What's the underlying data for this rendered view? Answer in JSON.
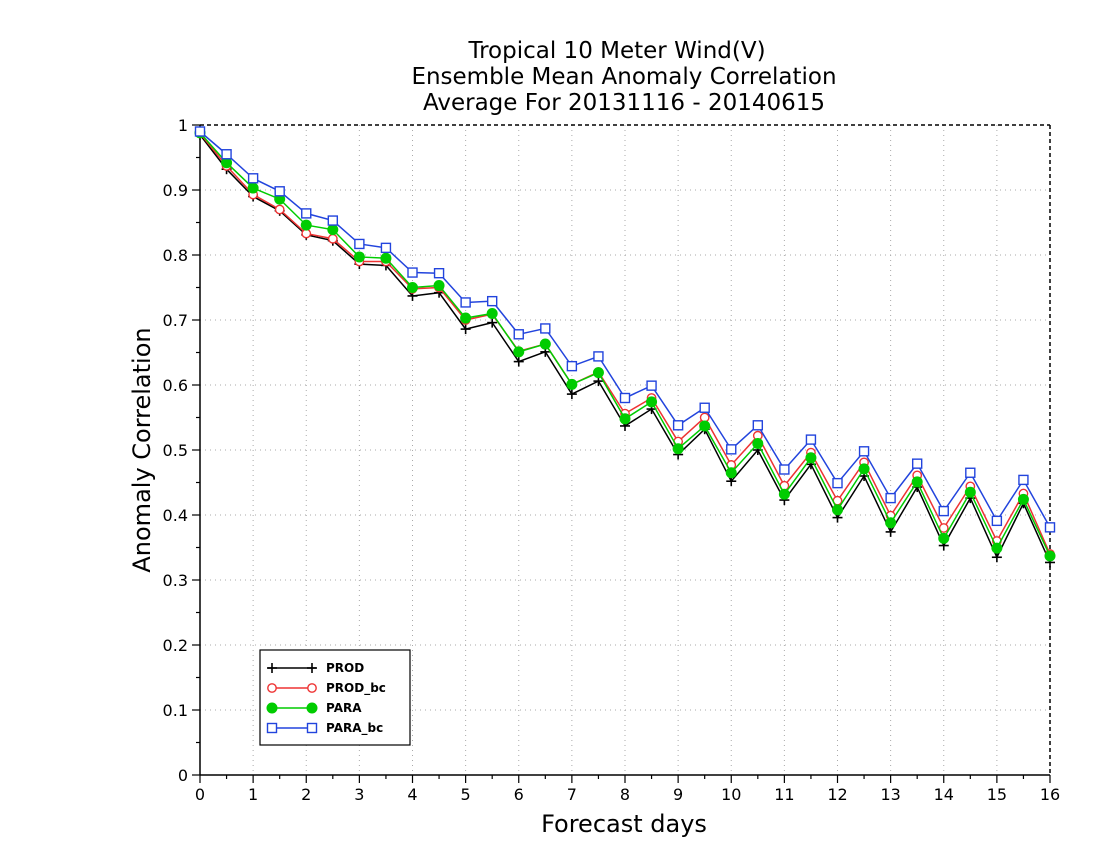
{
  "chart_data": {
    "type": "line",
    "title_lines": [
      "Tropical 10 Meter Wind(V)",
      "Ensemble Mean Anomaly Correlation",
      "Average For 20131116 - 20140615"
    ],
    "xlabel": "Forecast days",
    "ylabel": "Anomaly Correlation",
    "xlim": [
      0,
      16
    ],
    "ylim": [
      0,
      1
    ],
    "x_ticks": [
      "0",
      "1",
      "2",
      "3",
      "4",
      "5",
      "6",
      "7",
      "8",
      "9",
      "10",
      "11",
      "12",
      "13",
      "14",
      "15",
      "16"
    ],
    "y_ticks": [
      "0",
      "0.1",
      "0.2",
      "0.3",
      "0.4",
      "0.5",
      "0.6",
      "0.7",
      "0.8",
      "0.9",
      "1"
    ],
    "grid": true,
    "legend_position": "bottom-left",
    "x": [
      0,
      0.5,
      1,
      1.5,
      2,
      2.5,
      3,
      3.5,
      4,
      4.5,
      5,
      5.5,
      6,
      6.5,
      7,
      7.5,
      8,
      8.5,
      9,
      9.5,
      10,
      10.5,
      11,
      11.5,
      12,
      12.5,
      13,
      13.5,
      14,
      14.5,
      15,
      15.5,
      16
    ],
    "series": [
      {
        "name": "PROD",
        "color": "#000000",
        "marker": "plus",
        "values": [
          0.985,
          0.932,
          0.89,
          0.868,
          0.831,
          0.822,
          0.786,
          0.784,
          0.737,
          0.742,
          0.686,
          0.696,
          0.636,
          0.651,
          0.586,
          0.606,
          0.537,
          0.563,
          0.493,
          0.532,
          0.452,
          0.5,
          0.423,
          0.478,
          0.396,
          0.46,
          0.374,
          0.443,
          0.353,
          0.426,
          0.335,
          0.418,
          0.327
        ]
      },
      {
        "name": "PROD_bc",
        "color": "#ee3333",
        "marker": "open-circle",
        "values": [
          0.987,
          0.937,
          0.893,
          0.87,
          0.833,
          0.825,
          0.79,
          0.79,
          0.748,
          0.75,
          0.7,
          0.709,
          0.652,
          0.663,
          0.601,
          0.62,
          0.556,
          0.58,
          0.513,
          0.55,
          0.477,
          0.522,
          0.445,
          0.496,
          0.422,
          0.481,
          0.399,
          0.461,
          0.38,
          0.444,
          0.36,
          0.433,
          0.34
        ]
      },
      {
        "name": "PARA",
        "color": "#00cc00",
        "marker": "filled-circle",
        "values": [
          0.988,
          0.942,
          0.903,
          0.886,
          0.846,
          0.839,
          0.797,
          0.795,
          0.75,
          0.753,
          0.703,
          0.71,
          0.651,
          0.663,
          0.601,
          0.619,
          0.548,
          0.574,
          0.502,
          0.537,
          0.465,
          0.51,
          0.432,
          0.488,
          0.408,
          0.471,
          0.388,
          0.451,
          0.364,
          0.435,
          0.349,
          0.424,
          0.337
        ]
      },
      {
        "name": "PARA_bc",
        "color": "#2244dd",
        "marker": "open-square",
        "values": [
          0.99,
          0.955,
          0.918,
          0.898,
          0.864,
          0.853,
          0.817,
          0.811,
          0.773,
          0.772,
          0.727,
          0.729,
          0.678,
          0.687,
          0.629,
          0.644,
          0.58,
          0.599,
          0.538,
          0.565,
          0.501,
          0.538,
          0.47,
          0.516,
          0.449,
          0.498,
          0.426,
          0.479,
          0.406,
          0.465,
          0.391,
          0.454,
          0.381
        ]
      }
    ]
  }
}
